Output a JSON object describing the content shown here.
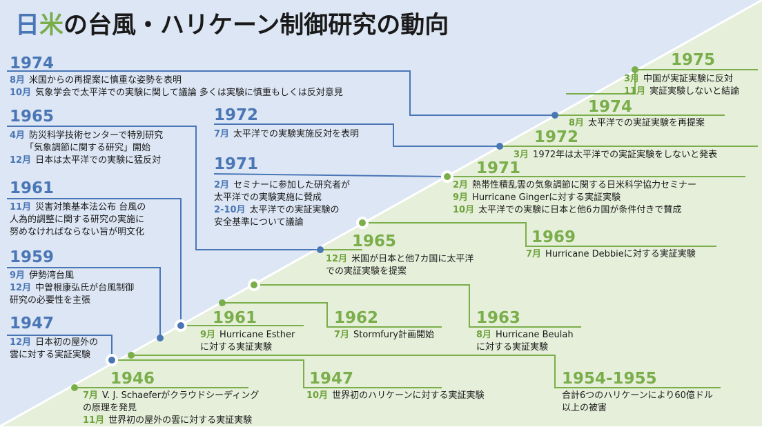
{
  "title": {
    "part1": "日",
    "part2": "米",
    "rest": "の台風・ハリケーン制御研究の動向"
  },
  "colors": {
    "japan": "#4a76b6",
    "us": "#7aae4a",
    "bg_japan": "#dbe5f3",
    "bg_us": "#e5efd8"
  },
  "japan": [
    {
      "year": "1974",
      "events": [
        {
          "month": "8月",
          "text": "米国からの再提案に慎重な姿勢を表明"
        },
        {
          "month": "10月",
          "text": "気象学会で太平洋での実験に関して議論 多くは実験に慎重もしくは反対意見"
        }
      ]
    },
    {
      "year": "1965",
      "events": [
        {
          "month": "4月",
          "text": "防災科学技術センターで特別研究",
          "cont": "「気象調節に関する研究」開始"
        },
        {
          "month": "12月",
          "text": "日本は太平洋での実験に猛反対"
        }
      ]
    },
    {
      "year": "1972",
      "events": [
        {
          "month": "7月",
          "text": "太平洋での実験実施反対を表明"
        }
      ]
    },
    {
      "year": "1971",
      "events": [
        {
          "month": "2月",
          "text": "セミナーに参加した研究者が",
          "cont": "太平洋での実験実施に賛成"
        },
        {
          "month": "2-10月",
          "text": "太平洋での実証実験の",
          "cont": "安全基準について議論"
        }
      ]
    },
    {
      "year": "1961",
      "events": [
        {
          "month": "11月",
          "text": "災害対策基本法公布 台風の",
          "cont": "人為的調整に関する研究の実施に",
          "cont2": "努めなければならない旨が明文化"
        }
      ]
    },
    {
      "year": "1959",
      "events": [
        {
          "month": "9月",
          "text": "伊勢湾台風"
        },
        {
          "month": "12月",
          "text": "中曽根康弘氏が台風制御",
          "cont": "研究の必要性を主張"
        }
      ]
    },
    {
      "year": "1947",
      "events": [
        {
          "month": "12月",
          "text": "日本初の屋外の",
          "cont": "雲に対する実証実験"
        }
      ]
    }
  ],
  "us": [
    {
      "year": "1975",
      "events": [
        {
          "month": "3月",
          "text": "中国が実証実験に反対"
        },
        {
          "month": "11月",
          "text": "実証実験しないと結論"
        }
      ]
    },
    {
      "year": "1974",
      "events": [
        {
          "month": "8月",
          "text": "太平洋での実証実験を再提案"
        }
      ]
    },
    {
      "year": "1972",
      "events": [
        {
          "month": "3月",
          "text": "1972年は太平洋での実証実験をしないと発表"
        }
      ]
    },
    {
      "year": "1971",
      "events": [
        {
          "month": "2月",
          "text": "熱帯性積乱雲の気象調節に関する日米科学協力セミナー"
        },
        {
          "month": "9月",
          "text": "Hurricane Gingerに対する実証実験"
        },
        {
          "month": "10月",
          "text": "太平洋での実験に日本と他6カ国が条件付きで賛成"
        }
      ]
    },
    {
      "year": "1969",
      "events": [
        {
          "month": "7月",
          "text": "Hurricane Debbieに対する実証実験"
        }
      ]
    },
    {
      "year": "1965",
      "events": [
        {
          "month": "12月",
          "text": "米国が日本と他7カ国に太平洋",
          "cont": "での実証実験を提案"
        }
      ]
    },
    {
      "year": "1961",
      "events": [
        {
          "month": "9月",
          "text": "Hurricane Esther",
          "cont": "に対する実証実験"
        }
      ]
    },
    {
      "year": "1962",
      "events": [
        {
          "month": "7月",
          "text": "Stormfury計画開始"
        }
      ]
    },
    {
      "year": "1963",
      "events": [
        {
          "month": "8月",
          "text": "Hurricane Beulah",
          "cont": "に対する実証実験"
        }
      ]
    },
    {
      "year": "1946",
      "events": [
        {
          "month": "7月",
          "text": "V. J. Schaeferがクラウドシーディング",
          "cont": "の原理を発見"
        },
        {
          "month": "11月",
          "text": "世界初の屋外の雲に対する実証実験"
        }
      ]
    },
    {
      "year": "1947",
      "events": [
        {
          "month": "10月",
          "text": "世界初のハリケーンに対する実証実験"
        }
      ]
    },
    {
      "year": "1954-1955",
      "events": [
        {
          "month": "",
          "text": "合計6つのハリケーンにより60億ドル",
          "cont": "以上の被害"
        }
      ]
    }
  ]
}
